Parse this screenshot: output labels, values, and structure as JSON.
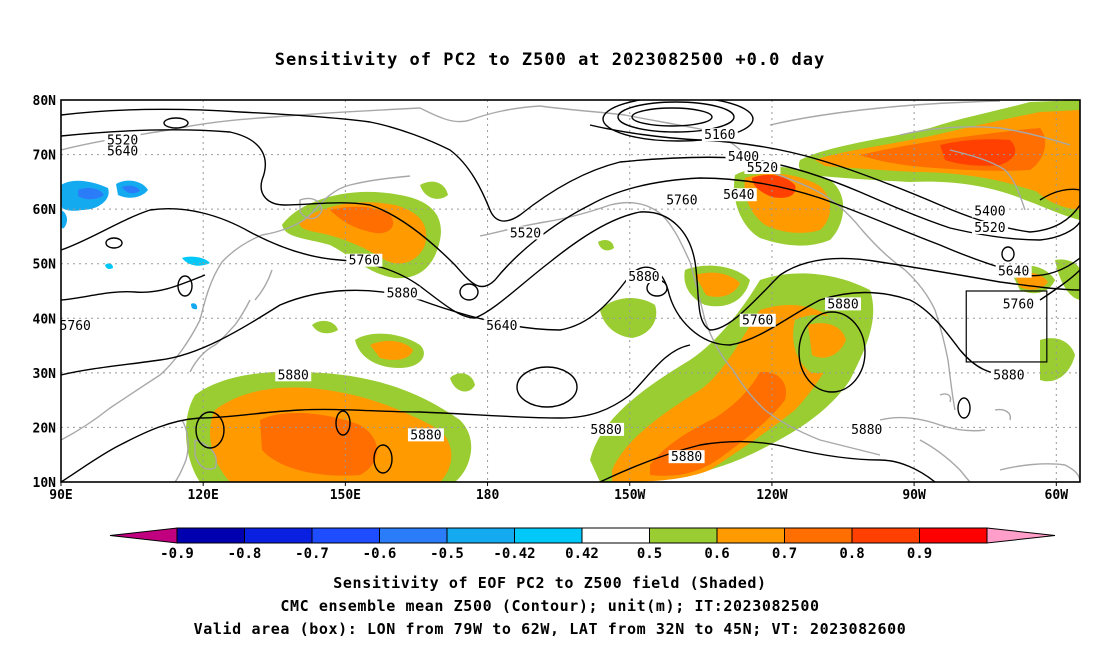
{
  "title": "Sensitivity of PC2 to Z500 at 2023082500 +0.0 day",
  "map": {
    "lon_labels": [
      "90E",
      "120E",
      "150E",
      "180",
      "150W",
      "120W",
      "90W",
      "60W"
    ],
    "lat_labels": [
      "80N",
      "70N",
      "60N",
      "50N",
      "40N",
      "30N",
      "20N",
      "10N"
    ],
    "contour_labels": [
      {
        "text": "5520",
        "lon": 103,
        "lat": 72
      },
      {
        "text": "5640",
        "lon": 103,
        "lat": 70
      },
      {
        "text": "5760",
        "lon": 93,
        "lat": 38
      },
      {
        "text": "5880",
        "lon": 139,
        "lat": 29
      },
      {
        "text": "5760",
        "lon": 154,
        "lat": 50
      },
      {
        "text": "5880",
        "lon": 162,
        "lat": 44
      },
      {
        "text": "5880",
        "lon": 167,
        "lat": 18
      },
      {
        "text": "5640",
        "lon": 183,
        "lat": 38
      },
      {
        "text": "5520",
        "lon": 188,
        "lat": 55
      },
      {
        "text": "5160",
        "lon": 229,
        "lat": 73
      },
      {
        "text": "5400",
        "lon": 234,
        "lat": 69
      },
      {
        "text": "5520",
        "lon": 238,
        "lat": 67
      },
      {
        "text": "5640",
        "lon": 233,
        "lat": 62
      },
      {
        "text": "5760",
        "lon": 221,
        "lat": 61
      },
      {
        "text": "5880",
        "lon": 213,
        "lat": 47
      },
      {
        "text": "5880",
        "lon": 205,
        "lat": 19
      },
      {
        "text": "5880",
        "lon": 222,
        "lat": 14
      },
      {
        "text": "5760",
        "lon": 237,
        "lat": 39
      },
      {
        "text": "5880",
        "lon": 255,
        "lat": 42
      },
      {
        "text": "5880",
        "lon": 260,
        "lat": 19
      },
      {
        "text": "5400",
        "lon": 286,
        "lat": 59
      },
      {
        "text": "5520",
        "lon": 286,
        "lat": 56
      },
      {
        "text": "5640",
        "lon": 291,
        "lat": 48
      },
      {
        "text": "5760",
        "lon": 292,
        "lat": 42
      },
      {
        "text": "5880",
        "lon": 290,
        "lat": 29
      }
    ],
    "valid_box": {
      "lon_min": -79,
      "lon_max": -62,
      "lat_min": 32,
      "lat_max": 45
    }
  },
  "colorbar": {
    "labels": [
      "-0.9",
      "-0.8",
      "-0.7",
      "-0.6",
      "-0.5",
      "-0.42",
      "0.42",
      "0.5",
      "0.6",
      "0.7",
      "0.8",
      "0.9"
    ],
    "colors": {
      "neg_end": "#c0007e",
      "neg": [
        "#0000b0",
        "#0a20e0",
        "#1e4cff",
        "#2a7cf8",
        "#14aaf0",
        "#00c8f8"
      ],
      "zero": "#ffffff",
      "pos": [
        "#9acd32",
        "#ff9b00",
        "#ff6e00",
        "#ff4000",
        "#ff0000"
      ],
      "pos_end": "#ff9ec8"
    }
  },
  "captions": {
    "line1": "Sensitivity of EOF PC2 to Z500 field (Shaded)",
    "line2": "CMC ensemble mean Z500 (Contour); unit(m); IT:2023082500",
    "line3": "Valid area (box): LON from 79W to 62W, LAT from 32N to 45N; VT: 2023082600"
  }
}
